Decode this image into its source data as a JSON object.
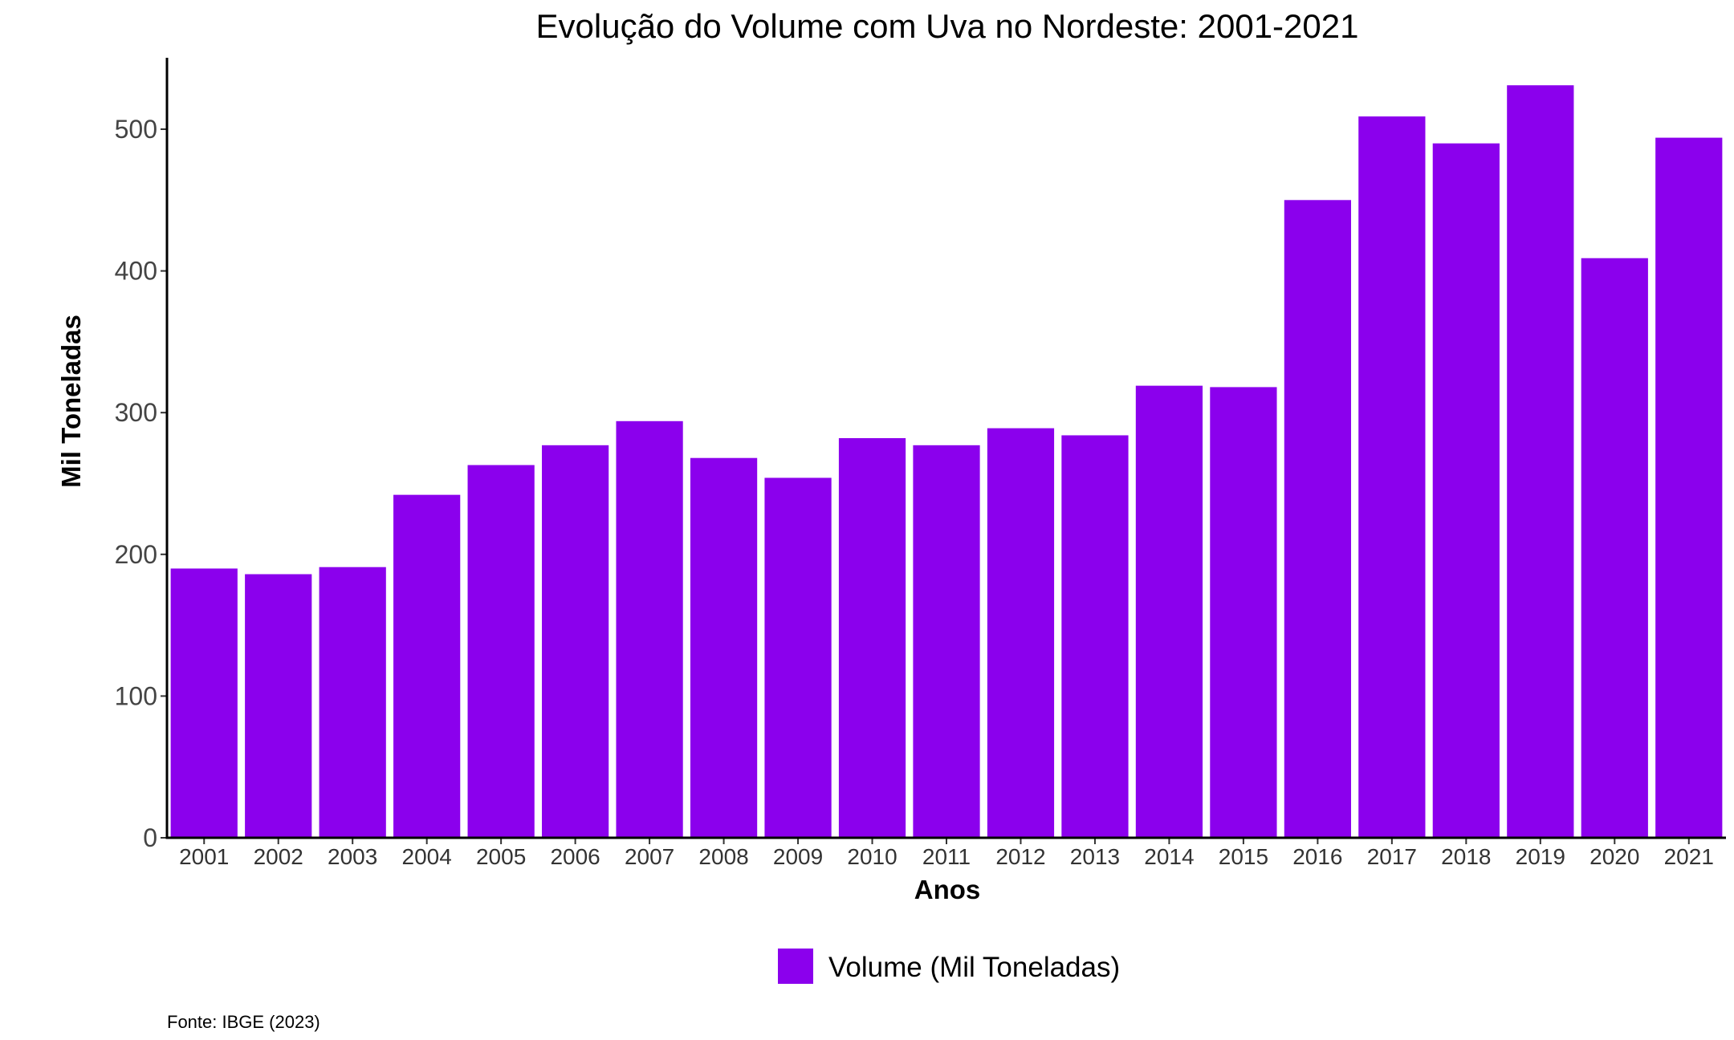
{
  "chart_data": {
    "type": "bar",
    "title": "Evolução do Volume com Uva no Nordeste: 2001-2021",
    "xlabel": "Anos",
    "ylabel": "Mil Toneladas",
    "categories": [
      "2001",
      "2002",
      "2003",
      "2004",
      "2005",
      "2006",
      "2007",
      "2008",
      "2009",
      "2010",
      "2011",
      "2012",
      "2013",
      "2014",
      "2015",
      "2016",
      "2017",
      "2018",
      "2019",
      "2020",
      "2021"
    ],
    "series": [
      {
        "name": "Volume (Mil Toneladas)",
        "color": "#8B00ED",
        "values": [
          190,
          186,
          191,
          242,
          263,
          277,
          294,
          268,
          254,
          282,
          277,
          289,
          284,
          319,
          318,
          450,
          509,
          490,
          531,
          409,
          494
        ]
      }
    ],
    "ylim": [
      0,
      550
    ],
    "yticks": [
      0,
      100,
      200,
      300,
      400,
      500
    ],
    "grid": false,
    "legend_position": "bottom",
    "caption": "Fonte: IBGE (2023)"
  }
}
